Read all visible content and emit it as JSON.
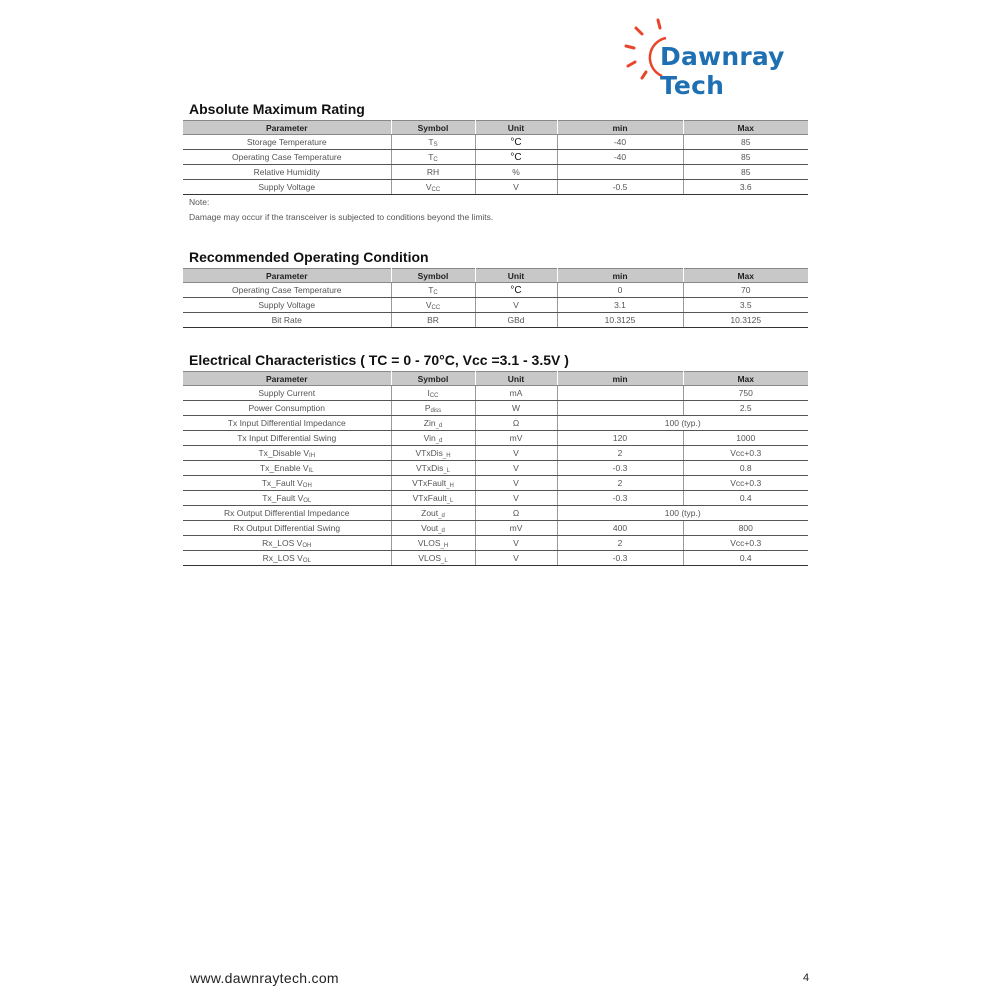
{
  "logo": {
    "text": "Dawnray Tech",
    "colors": {
      "sun": "#e8452c",
      "text": "#1f6fb3"
    }
  },
  "columns": [
    "Parameter",
    "Symbol",
    "Unit",
    "min",
    "Max"
  ],
  "sections": [
    {
      "title": "Absolute Maximum Rating",
      "rows": [
        {
          "param": "Storage Temperature",
          "sym": "T",
          "sub": "S",
          "unit": "°C",
          "min": "-40",
          "max": "85"
        },
        {
          "param": "Operating Case Temperature",
          "sym": "T",
          "sub": "C",
          "unit": "°C",
          "min": "-40",
          "max": "85"
        },
        {
          "param": "Relative Humidity",
          "sym": "RH",
          "sub": "",
          "unit": "%",
          "min": "",
          "max": "85"
        },
        {
          "param": "Supply Voltage",
          "sym": "V",
          "sub": "CC",
          "unit": "V",
          "min": "-0.5",
          "max": "3.6"
        }
      ]
    },
    {
      "title": "Recommended Operating Condition",
      "rows": [
        {
          "param": "Operating Case Temperature",
          "sym": "T",
          "sub": "C",
          "unit": "°C",
          "min": "0",
          "max": "70"
        },
        {
          "param": "Supply Voltage",
          "sym": "V",
          "sub": "CC",
          "unit": "V",
          "min": "3.1",
          "max": "3.5"
        },
        {
          "param": "Bit Rate",
          "sym": "BR",
          "sub": "",
          "unit": "GBd",
          "min": "10.3125",
          "max": "10.3125"
        }
      ]
    },
    {
      "title": "Electrical Characteristics ( TC = 0 - 70°C, Vcc =3.1 - 3.5V )",
      "rows": [
        {
          "param": "Supply Current",
          "sym": "I",
          "sub": "CC",
          "unit": "mA",
          "min": "",
          "max": "750"
        },
        {
          "param": "Power Consumption",
          "sym": "P",
          "sub": "diss",
          "unit": "W",
          "min": "",
          "max": "2.5"
        },
        {
          "param": "Tx Input Differential Impedance",
          "sym": "Zin",
          "sub": "_d",
          "unit": "Ω",
          "span": "100 (typ.)"
        },
        {
          "param": "Tx Input Differential Swing",
          "sym": "Vin",
          "sub": "_d",
          "unit": "mV",
          "min": "120",
          "max": "1000"
        },
        {
          "param": "Tx_Disable V",
          "psub": "IH",
          "sym": "VTxDis",
          "sub": "_H",
          "unit": "V",
          "min": "2",
          "max": "Vcc+0.3"
        },
        {
          "param": "Tx_Enable V",
          "psub": "IL",
          "sym": "VTxDis",
          "sub": "_L",
          "unit": "V",
          "min": "-0.3",
          "max": "0.8"
        },
        {
          "param": "Tx_Fault V",
          "psub": "OH",
          "sym": "VTxFault",
          "sub": "_H",
          "unit": "V",
          "min": "2",
          "max": "Vcc+0.3"
        },
        {
          "param": "Tx_Fault V",
          "psub": "OL",
          "sym": "VTxFault",
          "sub": "_L",
          "unit": "V",
          "min": "-0.3",
          "max": "0.4"
        },
        {
          "param": "Rx Output Differential Impedance",
          "sym": "Zout",
          "sub": "_d",
          "unit": "Ω",
          "span": "100 (typ.)"
        },
        {
          "param": "Rx Output Differential Swing",
          "sym": "Vout",
          "sub": "_d",
          "unit": "mV",
          "min": "400",
          "max": "800"
        },
        {
          "param": "Rx_LOS V",
          "psub": "OH",
          "sym": "VLOS",
          "sub": "_H",
          "unit": "V",
          "min": "2",
          "max": "Vcc+0.3"
        },
        {
          "param": "Rx_LOS V",
          "psub": "OL",
          "sym": "VLOS",
          "sub": "_L",
          "unit": "V",
          "min": "-0.3",
          "max": "0.4"
        }
      ]
    }
  ],
  "note": {
    "label": "Note:",
    "text": "Damage may occur if the transceiver is subjected to conditions beyond the limits."
  },
  "footer": {
    "url": "www.dawnraytech.com",
    "page": "4"
  }
}
